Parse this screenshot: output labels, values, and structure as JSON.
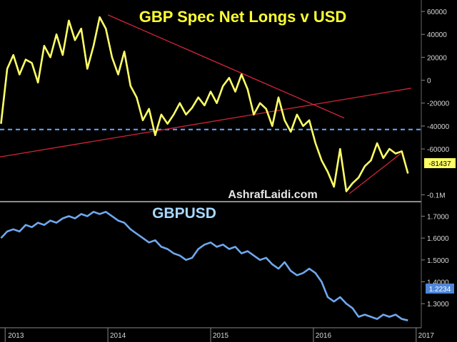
{
  "chart_data": [
    {
      "type": "line",
      "title": "GBP Spec Net Longs v USD",
      "watermark": "AshrafLaidi.com",
      "title_color": "#ffff33",
      "line_color": "#ffff66",
      "yticks": [
        {
          "value": 60000,
          "label": "60000"
        },
        {
          "value": 40000,
          "label": "40000"
        },
        {
          "value": 20000,
          "label": "20000"
        },
        {
          "value": 0,
          "label": "0"
        },
        {
          "value": -20000,
          "label": "-20000"
        },
        {
          "value": -40000,
          "label": "-40000"
        },
        {
          "value": -60000,
          "label": "-60000"
        },
        {
          "value": -100000,
          "label": "-0.1M"
        }
      ],
      "ylim": [
        -106000,
        70000
      ],
      "last_value_label": "-81437",
      "reference_level": -43000,
      "reference_color": "#6aa6ff",
      "trendlines": [
        {
          "from": [
            2014.0,
            57000
          ],
          "to": [
            2016.3,
            -33000
          ]
        },
        {
          "from": [
            2012.95,
            -67000
          ],
          "to": [
            2016.95,
            -7000
          ]
        },
        {
          "from": [
            2016.35,
            -99000
          ],
          "to": [
            2016.85,
            -64000
          ]
        }
      ],
      "trend_color": "#d0243a",
      "x": [
        2012.96,
        2013.02,
        2013.08,
        2013.14,
        2013.2,
        2013.26,
        2013.32,
        2013.38,
        2013.44,
        2013.5,
        2013.56,
        2013.62,
        2013.68,
        2013.74,
        2013.8,
        2013.86,
        2013.92,
        2013.98,
        2014.04,
        2014.1,
        2014.16,
        2014.22,
        2014.28,
        2014.34,
        2014.4,
        2014.46,
        2014.52,
        2014.58,
        2014.64,
        2014.7,
        2014.76,
        2014.82,
        2014.88,
        2014.94,
        2015.0,
        2015.06,
        2015.12,
        2015.18,
        2015.24,
        2015.3,
        2015.36,
        2015.42,
        2015.48,
        2015.54,
        2015.6,
        2015.66,
        2015.72,
        2015.78,
        2015.84,
        2015.9,
        2015.96,
        2016.02,
        2016.08,
        2016.14,
        2016.2,
        2016.26,
        2016.32,
        2016.38,
        2016.44,
        2016.5,
        2016.56,
        2016.62,
        2016.68,
        2016.74,
        2016.8,
        2016.86,
        2016.92
      ],
      "values": [
        -38000,
        10000,
        22000,
        5000,
        18000,
        15000,
        -2000,
        30000,
        20000,
        40000,
        22000,
        52000,
        35000,
        45000,
        10000,
        30000,
        55000,
        45000,
        20000,
        5000,
        25000,
        -5000,
        -15000,
        -35000,
        -25000,
        -48000,
        -30000,
        -38000,
        -30000,
        -20000,
        -30000,
        -24000,
        -15000,
        -22000,
        -10000,
        -20000,
        -5000,
        2000,
        -10000,
        5000,
        -8000,
        -30000,
        -20000,
        -25000,
        -40000,
        -15000,
        -35000,
        -45000,
        -30000,
        -40000,
        -35000,
        -55000,
        -70000,
        -80000,
        -93000,
        -60000,
        -97000,
        -90000,
        -85000,
        -75000,
        -70000,
        -55000,
        -68000,
        -60000,
        -64000,
        -62000,
        -81437
      ]
    },
    {
      "type": "line",
      "title": "GBPUSD",
      "title_color": "#a8d8ff",
      "line_color": "#6fa8ee",
      "yticks": [
        {
          "value": 1.7,
          "label": "1.7000"
        },
        {
          "value": 1.6,
          "label": "1.6000"
        },
        {
          "value": 1.5,
          "label": "1.5000"
        },
        {
          "value": 1.4,
          "label": "1.4000"
        },
        {
          "value": 1.3,
          "label": "1.3000"
        }
      ],
      "ylim": [
        1.19,
        1.76
      ],
      "last_value_label": "1.2234",
      "x": [
        2012.96,
        2013.02,
        2013.08,
        2013.14,
        2013.2,
        2013.26,
        2013.32,
        2013.38,
        2013.44,
        2013.5,
        2013.56,
        2013.62,
        2013.68,
        2013.74,
        2013.8,
        2013.86,
        2013.92,
        2013.98,
        2014.04,
        2014.1,
        2014.16,
        2014.22,
        2014.28,
        2014.34,
        2014.4,
        2014.46,
        2014.52,
        2014.58,
        2014.64,
        2014.7,
        2014.76,
        2014.82,
        2014.88,
        2014.94,
        2015.0,
        2015.06,
        2015.12,
        2015.18,
        2015.24,
        2015.3,
        2015.36,
        2015.42,
        2015.48,
        2015.54,
        2015.6,
        2015.66,
        2015.72,
        2015.78,
        2015.84,
        2015.9,
        2015.96,
        2016.02,
        2016.08,
        2016.14,
        2016.2,
        2016.26,
        2016.32,
        2016.38,
        2016.44,
        2016.5,
        2016.56,
        2016.62,
        2016.68,
        2016.74,
        2016.8,
        2016.86,
        2016.92
      ],
      "values": [
        1.6,
        1.63,
        1.64,
        1.63,
        1.66,
        1.65,
        1.67,
        1.66,
        1.68,
        1.67,
        1.69,
        1.7,
        1.69,
        1.71,
        1.7,
        1.72,
        1.71,
        1.72,
        1.7,
        1.68,
        1.67,
        1.64,
        1.62,
        1.6,
        1.58,
        1.59,
        1.56,
        1.55,
        1.53,
        1.52,
        1.5,
        1.51,
        1.55,
        1.57,
        1.58,
        1.56,
        1.57,
        1.55,
        1.56,
        1.53,
        1.54,
        1.52,
        1.5,
        1.51,
        1.48,
        1.46,
        1.49,
        1.45,
        1.43,
        1.44,
        1.46,
        1.44,
        1.4,
        1.33,
        1.31,
        1.33,
        1.3,
        1.28,
        1.24,
        1.25,
        1.24,
        1.23,
        1.25,
        1.24,
        1.25,
        1.23,
        1.2234
      ]
    }
  ],
  "x_axis": {
    "range": [
      2012.95,
      2017.05
    ],
    "ticks": [
      {
        "value": 2013.0,
        "label": "2013"
      },
      {
        "value": 2014.0,
        "label": "2014"
      },
      {
        "value": 2015.0,
        "label": "2015"
      },
      {
        "value": 2016.0,
        "label": "2016"
      },
      {
        "value": 2017.0,
        "label": "2017"
      }
    ]
  }
}
